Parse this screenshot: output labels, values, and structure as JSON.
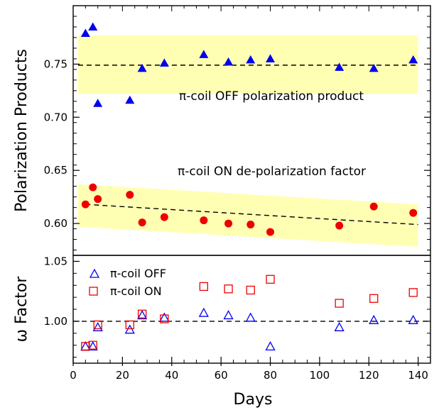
{
  "chart_data": [
    {
      "type": "scatter",
      "ylabel": "Polarization Products",
      "ylim": [
        0.57,
        0.805
      ],
      "xlim": [
        0,
        145
      ],
      "yticks": [
        0.6,
        0.65,
        0.7,
        0.75
      ],
      "ytick_labels": [
        "0.60",
        "0.65",
        "0.70",
        "0.75"
      ],
      "grid": false,
      "annotations": [
        "π-coil OFF polarization product",
        "π-coil ON de-polarization factor"
      ],
      "series": [
        {
          "marker": "filled-triangle",
          "color": "#0000ee",
          "x": [
            5,
            8,
            10,
            23,
            28,
            37,
            53,
            63,
            72,
            80,
            108,
            122,
            138
          ],
          "y": [
            0.779,
            0.785,
            0.713,
            0.716,
            0.746,
            0.751,
            0.759,
            0.752,
            0.754,
            0.755,
            0.747,
            0.746,
            0.754
          ]
        },
        {
          "marker": "filled-circle",
          "color": "#ee0000",
          "x": [
            5,
            8,
            10,
            23,
            28,
            37,
            53,
            63,
            72,
            80,
            108,
            122,
            138
          ],
          "y": [
            0.618,
            0.634,
            0.623,
            0.627,
            0.601,
            0.606,
            0.603,
            0.6,
            0.599,
            0.592,
            0.598,
            0.616,
            0.61
          ]
        }
      ],
      "fits": [
        {
          "x": [
            2,
            140
          ],
          "y": [
            0.749,
            0.749
          ]
        },
        {
          "x": [
            5,
            140
          ],
          "y": [
            0.618,
            0.599
          ]
        }
      ],
      "bands": [
        {
          "x": [
            2,
            140
          ],
          "lower": [
            0.722,
            0.722
          ],
          "upper": [
            0.777,
            0.777
          ],
          "color": "#ffffb4"
        },
        {
          "x": [
            2,
            140
          ],
          "lower": [
            0.597,
            0.578
          ],
          "upper": [
            0.637,
            0.618
          ],
          "color": "#ffffb4"
        }
      ]
    },
    {
      "type": "scatter",
      "xlabel": "Days",
      "ylabel": "ω Factor",
      "xlim": [
        0,
        145
      ],
      "ylim": [
        0.965,
        1.055
      ],
      "xticks": [
        0,
        20,
        40,
        60,
        80,
        100,
        120,
        140
      ],
      "xtick_labels": [
        "0",
        "20",
        "40",
        "60",
        "80",
        "100",
        "120",
        "140"
      ],
      "yticks": [
        1.0,
        1.05
      ],
      "ytick_labels": [
        "1.00",
        "1.05"
      ],
      "legend_position": "top-left",
      "grid": false,
      "reference_line": 1.0,
      "series": [
        {
          "name": "π-coil OFF",
          "marker": "open-triangle",
          "color": "#0000ee",
          "x": [
            5,
            8,
            10,
            23,
            28,
            37,
            53,
            63,
            72,
            80,
            108,
            122,
            138
          ],
          "y": [
            0.979,
            0.979,
            0.995,
            0.993,
            1.005,
            1.003,
            1.007,
            1.005,
            1.003,
            0.979,
            0.995,
            1.001,
            1.001
          ]
        },
        {
          "name": "π-coil ON",
          "marker": "open-square",
          "color": "#ee0000",
          "x": [
            5,
            8,
            10,
            23,
            28,
            37,
            53,
            63,
            72,
            80,
            108,
            122,
            138
          ],
          "y": [
            0.979,
            0.98,
            0.997,
            0.997,
            1.006,
            1.002,
            1.029,
            1.027,
            1.026,
            1.035,
            1.015,
            1.019,
            1.024
          ]
        }
      ]
    }
  ]
}
